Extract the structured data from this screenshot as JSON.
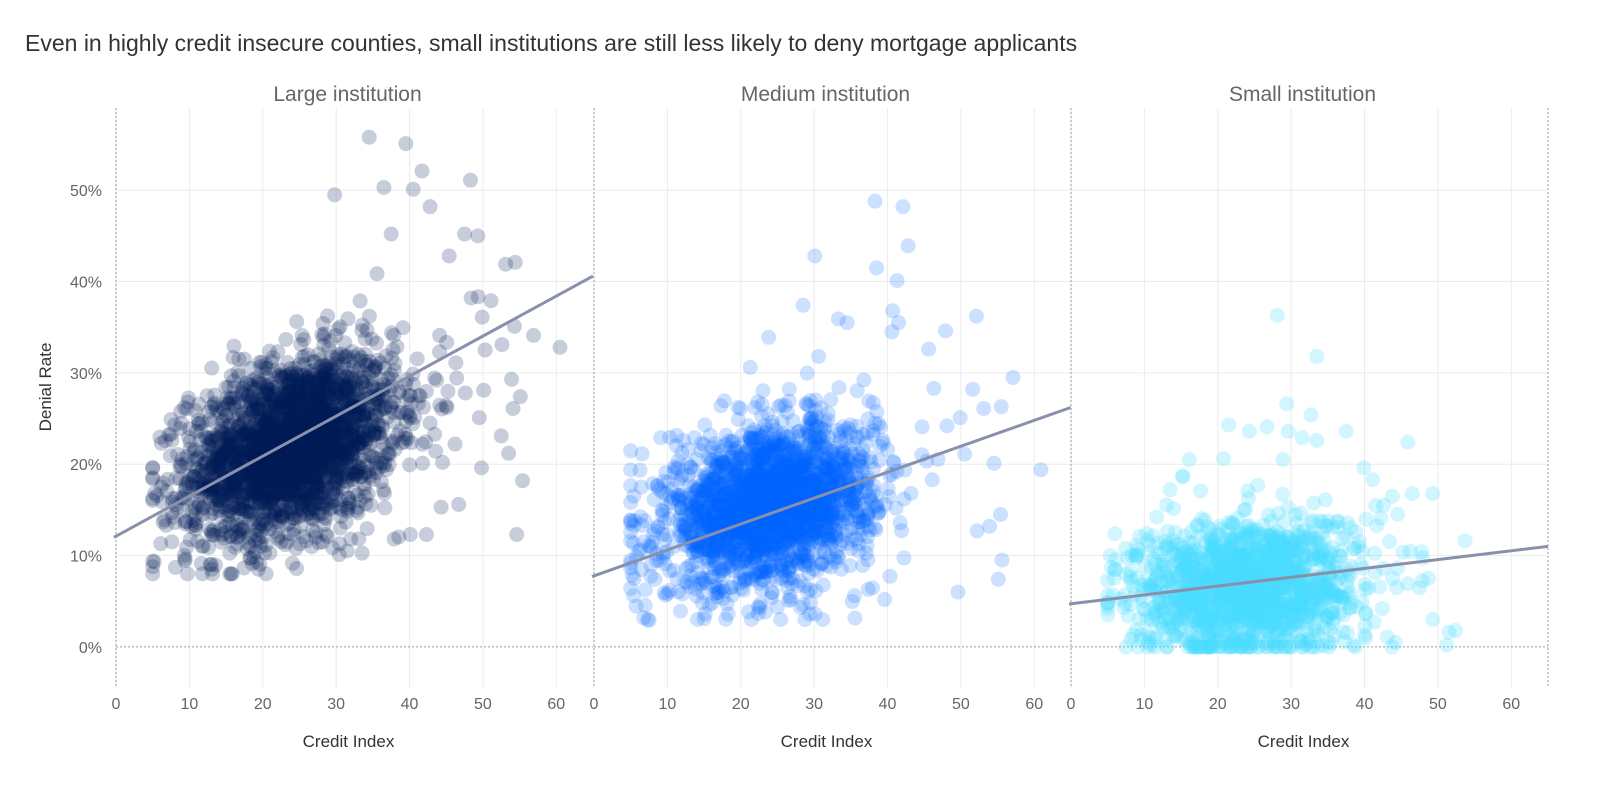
{
  "title": "Even in highly credit insecure counties, small institutions are still less likely to deny mortgage applicants",
  "chart_data": {
    "type": "scatter",
    "ylabel": "Denial Rate",
    "xlabel": "Credit Index",
    "xlim": [
      0,
      65
    ],
    "ylim": [
      -4.5,
      59
    ],
    "x_ticks": [
      0,
      10,
      20,
      30,
      40,
      50,
      60
    ],
    "y_ticks": [
      0,
      10,
      20,
      30,
      40,
      50
    ],
    "y_tick_labels": [
      "0%",
      "10%",
      "20%",
      "30%",
      "40%",
      "50%"
    ],
    "grid": true,
    "panels": [
      {
        "title": "Large institution",
        "color": "#001a57",
        "opacity": 0.22,
        "trend": {
          "intercept": 12.0,
          "slope": 0.44
        },
        "cloud": {
          "n": 2600,
          "x_mean": 24,
          "x_sd": 7,
          "y_mean": 22,
          "y_sd": 5.2,
          "y_min": 8
        },
        "points": [
          [
            34.5,
            55.8
          ],
          [
            39.5,
            55.1
          ],
          [
            41.7,
            52.1
          ],
          [
            48.3,
            51.1
          ],
          [
            29.8,
            49.5
          ],
          [
            36.5,
            50.3
          ],
          [
            40.5,
            50.1
          ],
          [
            37.5,
            45.2
          ],
          [
            42.8,
            48.2
          ],
          [
            47.5,
            45.2
          ],
          [
            49.3,
            45.0
          ],
          [
            45.4,
            42.8
          ],
          [
            53.1,
            41.9
          ],
          [
            54.4,
            42.1
          ],
          [
            48.4,
            38.2
          ],
          [
            51.1,
            37.9
          ],
          [
            49.9,
            36.1
          ],
          [
            56.9,
            34.1
          ],
          [
            60.5,
            32.8
          ],
          [
            54.3,
            35.1
          ],
          [
            52.6,
            33.1
          ],
          [
            50.3,
            32.5
          ],
          [
            53.9,
            29.3
          ],
          [
            50.1,
            28.1
          ],
          [
            55.1,
            27.4
          ],
          [
            54.1,
            26.1
          ],
          [
            49.5,
            25.1
          ],
          [
            52.5,
            23.1
          ],
          [
            53.5,
            21.2
          ],
          [
            55.4,
            18.2
          ],
          [
            49.8,
            19.6
          ],
          [
            46.7,
            15.6
          ],
          [
            44.3,
            15.3
          ],
          [
            54.6,
            12.3
          ],
          [
            42.3,
            12.3
          ],
          [
            40.1,
            12.3
          ],
          [
            37.9,
            11.8
          ],
          [
            31.5,
            10.5
          ],
          [
            15.5,
            8.0
          ],
          [
            8.1,
            8.7
          ],
          [
            6.1,
            11.3
          ],
          [
            7.6,
            11.5
          ],
          [
            9.3,
            10.0
          ],
          [
            7.5,
            24.9
          ],
          [
            8.9,
            24.5
          ],
          [
            6.2,
            17.5
          ],
          [
            10.1,
            22.5
          ],
          [
            44.1,
            34.1
          ],
          [
            46.3,
            31.1
          ],
          [
            43.7,
            29.2
          ],
          [
            47.6,
            27.8
          ],
          [
            45.1,
            26.2
          ],
          [
            42.8,
            24.5
          ],
          [
            46.2,
            22.2
          ],
          [
            44.5,
            20.2
          ]
        ]
      },
      {
        "title": "Medium institution",
        "color": "#0062ff",
        "opacity": 0.2,
        "trend": {
          "intercept": 7.7,
          "slope": 0.285
        },
        "cloud": {
          "n": 2300,
          "x_mean": 24,
          "x_sd": 7,
          "y_mean": 15.5,
          "y_sd": 4.6,
          "y_min": 3
        },
        "points": [
          [
            38.3,
            48.8
          ],
          [
            42.1,
            48.2
          ],
          [
            42.8,
            43.9
          ],
          [
            30.1,
            42.8
          ],
          [
            38.5,
            41.5
          ],
          [
            41.3,
            40.1
          ],
          [
            40.7,
            36.8
          ],
          [
            41.5,
            35.5
          ],
          [
            40.6,
            34.5
          ],
          [
            52.1,
            36.2
          ],
          [
            47.9,
            34.6
          ],
          [
            45.6,
            32.6
          ],
          [
            28.5,
            37.4
          ],
          [
            33.3,
            35.9
          ],
          [
            34.5,
            35.5
          ],
          [
            51.6,
            28.2
          ],
          [
            55.5,
            26.3
          ],
          [
            53.1,
            26.1
          ],
          [
            57.1,
            29.5
          ],
          [
            49.9,
            25.1
          ],
          [
            60.9,
            19.4
          ],
          [
            54.5,
            20.1
          ],
          [
            55.4,
            14.5
          ],
          [
            55.6,
            9.5
          ],
          [
            53.9,
            13.2
          ],
          [
            52.2,
            12.7
          ],
          [
            55.1,
            7.4
          ],
          [
            49.6,
            6.0
          ],
          [
            39.6,
            5.2
          ],
          [
            35.5,
            5.6
          ],
          [
            29.4,
            3.6
          ],
          [
            22.4,
            4.4
          ],
          [
            15.7,
            4.6
          ],
          [
            7.5,
            2.9
          ],
          [
            5.4,
            5.6
          ],
          [
            6.1,
            10.5
          ],
          [
            9.1,
            22.9
          ],
          [
            12.2,
            22.6
          ],
          [
            15.1,
            24.3
          ],
          [
            17.3,
            26.4
          ],
          [
            21.3,
            30.6
          ],
          [
            23.8,
            33.9
          ],
          [
            30.6,
            31.8
          ],
          [
            46.3,
            28.3
          ],
          [
            48.1,
            24.2
          ],
          [
            44.7,
            24.1
          ],
          [
            50.5,
            21.1
          ],
          [
            46.1,
            18.3
          ],
          [
            43.2,
            16.8
          ]
        ]
      },
      {
        "title": "Small institution",
        "color": "#46dcff",
        "opacity": 0.25,
        "trend": {
          "intercept": 4.7,
          "slope": 0.097
        },
        "cloud": {
          "n": 1500,
          "x_mean": 24,
          "x_sd": 7.5,
          "y_mean": 6.5,
          "y_sd": 4.2,
          "y_min": 0
        },
        "points": [
          [
            28.1,
            36.3
          ],
          [
            33.5,
            31.8
          ],
          [
            29.4,
            26.6
          ],
          [
            32.7,
            25.4
          ],
          [
            24.3,
            23.6
          ],
          [
            21.5,
            24.3
          ],
          [
            26.7,
            24.1
          ],
          [
            37.5,
            23.6
          ],
          [
            45.9,
            22.4
          ],
          [
            29.6,
            23.6
          ],
          [
            31.5,
            22.9
          ],
          [
            16.1,
            20.5
          ],
          [
            33.5,
            22.6
          ],
          [
            28.9,
            20.5
          ],
          [
            39.9,
            19.6
          ],
          [
            46.5,
            16.8
          ],
          [
            49.3,
            16.8
          ],
          [
            41.1,
            18.3
          ],
          [
            42.6,
            15.5
          ],
          [
            43.8,
            16.5
          ],
          [
            53.7,
            11.6
          ],
          [
            49.3,
            3.0
          ],
          [
            52.4,
            1.8
          ],
          [
            51.5,
            1.6
          ],
          [
            51.2,
            0.2
          ],
          [
            44.2,
            0.5
          ],
          [
            43.1,
            1.1
          ],
          [
            45.9,
            6.9
          ],
          [
            44.4,
            6.5
          ],
          [
            40.1,
            6.3
          ],
          [
            8.1,
            7.6
          ],
          [
            7.2,
            4.3
          ],
          [
            8.5,
            1.3
          ],
          [
            10.3,
            12.4
          ],
          [
            13.5,
            17.2
          ],
          [
            15.2,
            18.6
          ],
          [
            42.2,
            14.1
          ],
          [
            36.3,
            13.1
          ],
          [
            38.8,
            12.6
          ]
        ]
      }
    ]
  }
}
